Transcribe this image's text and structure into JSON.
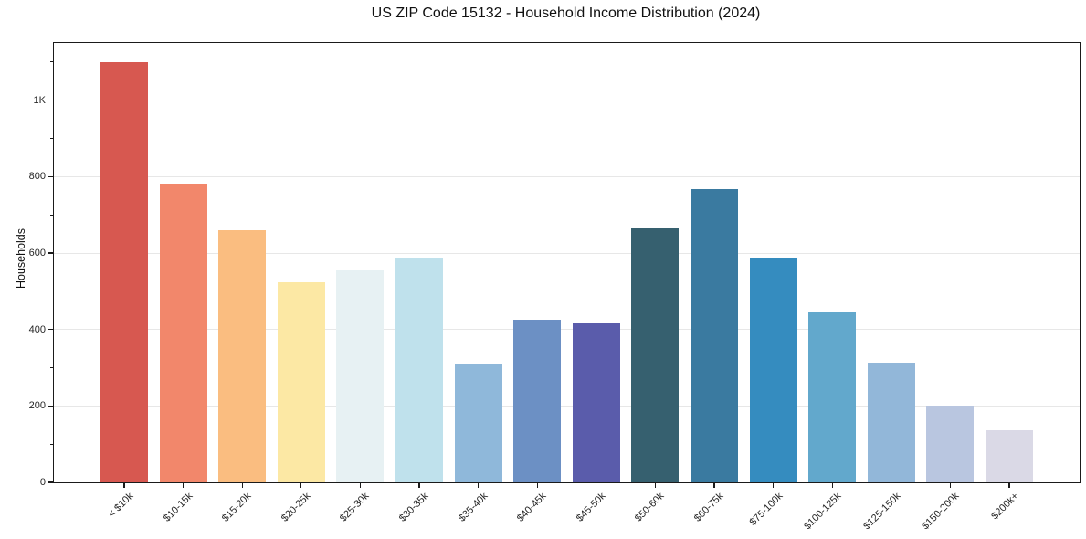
{
  "chart_data": {
    "type": "bar",
    "title": "US ZIP Code 15132 - Household Income Distribution (2024)",
    "xlabel": "",
    "ylabel": "Households",
    "categories": [
      "< $10k",
      "$10-15k",
      "$15-20k",
      "$20-25k",
      "$25-30k",
      "$30-35k",
      "$35-40k",
      "$40-45k",
      "$45-50k",
      "$50-60k",
      "$60-75k",
      "$75-100k",
      "$100-125k",
      "$125-150k",
      "$150-200k",
      "$200k+"
    ],
    "values": [
      1100,
      782,
      660,
      524,
      557,
      588,
      311,
      426,
      416,
      665,
      768,
      588,
      445,
      313,
      201,
      136
    ],
    "bar_colors": [
      "#d75850",
      "#f2876b",
      "#fabd80",
      "#fce8a4",
      "#e7f1f3",
      "#bfe1ec",
      "#8fb8da",
      "#6c90c4",
      "#5a5cab",
      "#36606f",
      "#3a7aa0",
      "#358cbf",
      "#62a8cc",
      "#92b7d9",
      "#b9c6e0",
      "#dad9e6"
    ],
    "ylim": [
      0,
      1150
    ],
    "yticks": {
      "values": [
        0,
        200,
        400,
        600,
        800,
        1000
      ],
      "labels": [
        "0",
        "200",
        "400",
        "600",
        "800",
        "1K"
      ]
    },
    "minor_yticks": [
      100,
      300,
      500,
      700,
      900,
      1100
    ],
    "grid": "horizontal-major",
    "legend": "none",
    "styles": {
      "spine_color": "#1a1a1a",
      "grid_color": "#e7e7e7",
      "text_color": "#262626",
      "background": "#ffffff"
    }
  }
}
